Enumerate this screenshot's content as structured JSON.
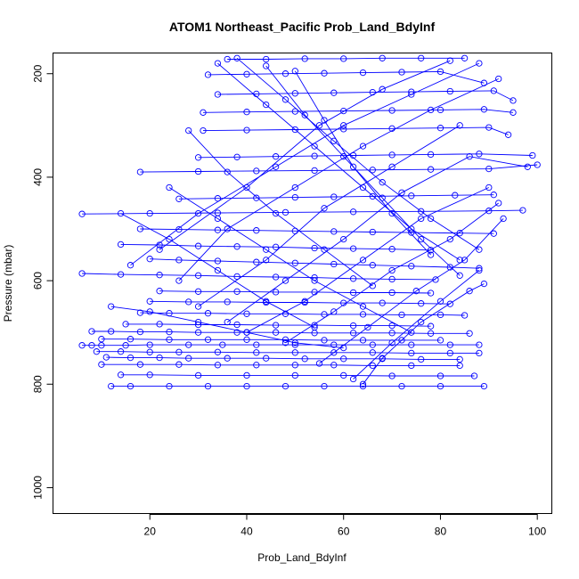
{
  "chart_data": {
    "type": "line",
    "title": "ATOM1 Northeast_Pacific Prob_Land_BdyInf",
    "xlabel": "Prob_Land_BdyInf",
    "ylabel": "Pressure (mbar)",
    "xlim": [
      0,
      103
    ],
    "ylim": [
      1050,
      160
    ],
    "y_reversed": true,
    "x_ticks": [
      20,
      40,
      60,
      80,
      100
    ],
    "y_ticks": [
      200,
      400,
      600,
      800,
      1000
    ],
    "grid": false,
    "legend": "none",
    "marker": "open-circle",
    "color": "#0000ff",
    "series": [
      {
        "x": [
          6,
          8,
          10,
          15,
          20,
          28,
          35,
          42,
          50,
          58,
          66,
          74,
          82,
          88
        ],
        "y": [
          725,
          725,
          725,
          725,
          724,
          724,
          724,
          724,
          724,
          724,
          724,
          724,
          724,
          724
        ]
      },
      {
        "x": [
          8,
          12,
          18,
          24,
          30,
          38,
          46,
          54,
          62,
          70,
          78,
          86
        ],
        "y": [
          698,
          698,
          699,
          699,
          700,
          700,
          700,
          701,
          701,
          701,
          702,
          702
        ]
      },
      {
        "x": [
          11,
          16,
          22,
          28,
          36,
          44,
          52,
          60,
          68,
          76,
          84
        ],
        "y": [
          748,
          749,
          749,
          750,
          750,
          750,
          751,
          751,
          751,
          752,
          752
        ]
      },
      {
        "x": [
          12,
          16,
          24,
          32,
          40,
          48,
          56,
          64,
          72,
          80,
          89
        ],
        "y": [
          804,
          804,
          804,
          804,
          804,
          804,
          804,
          804,
          804,
          804,
          804
        ]
      },
      {
        "x": [
          14,
          20,
          30,
          40,
          50,
          60,
          70,
          80,
          87
        ],
        "y": [
          782,
          782,
          783,
          783,
          783,
          783,
          784,
          784,
          784
        ]
      },
      {
        "x": [
          9,
          14,
          20,
          26,
          34,
          42,
          50,
          58,
          66,
          74,
          82,
          88
        ],
        "y": [
          737,
          737,
          738,
          738,
          738,
          739,
          739,
          739,
          739,
          740,
          740,
          740
        ]
      },
      {
        "x": [
          10,
          16,
          24,
          32,
          40,
          48,
          56,
          64,
          72,
          80
        ],
        "y": [
          713,
          713,
          714,
          714,
          714,
          714,
          715,
          715,
          715,
          715
        ]
      },
      {
        "x": [
          10,
          18,
          26,
          34,
          42,
          50,
          58,
          66,
          74,
          84
        ],
        "y": [
          762,
          762,
          762,
          763,
          763,
          763,
          763,
          764,
          764,
          764
        ]
      },
      {
        "x": [
          15,
          22,
          30,
          38,
          46,
          54,
          62,
          70,
          78
        ],
        "y": [
          684,
          684,
          685,
          685,
          686,
          686,
          687,
          687,
          688
        ]
      },
      {
        "x": [
          18,
          24,
          32,
          40,
          48,
          56,
          64,
          72,
          80,
          85
        ],
        "y": [
          662,
          663,
          663,
          664,
          664,
          665,
          665,
          666,
          666,
          667
        ]
      },
      {
        "x": [
          20,
          28,
          36,
          44,
          52,
          60,
          68,
          76,
          82
        ],
        "y": [
          640,
          641,
          641,
          642,
          642,
          643,
          643,
          644,
          645
        ]
      },
      {
        "x": [
          22,
          30,
          38,
          46,
          54,
          62,
          70,
          78
        ],
        "y": [
          620,
          621,
          621,
          622,
          622,
          623,
          623,
          624
        ]
      },
      {
        "x": [
          6,
          14,
          22,
          30,
          38,
          46,
          54,
          62,
          70,
          79
        ],
        "y": [
          586,
          588,
          589,
          590,
          592,
          593,
          594,
          596,
          597,
          598
        ]
      },
      {
        "x": [
          20,
          26,
          34,
          42,
          50,
          58,
          66,
          74,
          82,
          88
        ],
        "y": [
          558,
          560,
          562,
          564,
          566,
          568,
          570,
          572,
          574,
          576
        ]
      },
      {
        "x": [
          14,
          22,
          30,
          38,
          46,
          54,
          62,
          70,
          78
        ],
        "y": [
          530,
          531,
          533,
          534,
          535,
          537,
          538,
          539,
          541
        ]
      },
      {
        "x": [
          18,
          26,
          34,
          42,
          50,
          58,
          66,
          74,
          84,
          91
        ],
        "y": [
          500,
          501,
          502,
          503,
          504,
          505,
          506,
          507,
          508,
          509
        ]
      },
      {
        "x": [
          6,
          20,
          34,
          48,
          62,
          76,
          90,
          97
        ],
        "y": [
          471,
          470,
          469,
          468,
          467,
          466,
          465,
          464
        ]
      },
      {
        "x": [
          26,
          34,
          42,
          50,
          58,
          66,
          74,
          83,
          91
        ],
        "y": [
          442,
          441,
          440,
          439,
          438,
          437,
          436,
          435,
          434
        ]
      },
      {
        "x": [
          18,
          30,
          42,
          54,
          66,
          78,
          90,
          100
        ],
        "y": [
          390,
          389,
          388,
          387,
          386,
          385,
          384,
          376
        ]
      },
      {
        "x": [
          30,
          38,
          46,
          54,
          62,
          70,
          78,
          88,
          99
        ],
        "y": [
          362,
          361,
          360,
          359,
          358,
          357,
          356,
          355,
          358
        ]
      },
      {
        "x": [
          31,
          40,
          50,
          60,
          70,
          80,
          90,
          94
        ],
        "y": [
          310,
          309,
          308,
          307,
          306,
          305,
          304,
          318
        ]
      },
      {
        "x": [
          31,
          40,
          50,
          60,
          70,
          80,
          89,
          95
        ],
        "y": [
          275,
          274,
          273,
          272,
          271,
          270,
          269,
          275
        ]
      },
      {
        "x": [
          34,
          42,
          50,
          58,
          66,
          74,
          82,
          91,
          95
        ],
        "y": [
          240,
          239,
          238,
          237,
          236,
          235,
          234,
          233,
          252
        ]
      },
      {
        "x": [
          32,
          40,
          48,
          56,
          64,
          72,
          80,
          89
        ],
        "y": [
          202,
          201,
          200,
          199,
          198,
          197,
          196,
          218
        ]
      },
      {
        "x": [
          36,
          44,
          52,
          60,
          68,
          76,
          85
        ],
        "y": [
          172,
          172,
          171,
          171,
          170,
          170,
          170
        ]
      },
      {
        "x": [
          22,
          40,
          55,
          68,
          82
        ],
        "y": [
          540,
          420,
          300,
          230,
          175
        ]
      },
      {
        "x": [
          16,
          30,
          46,
          60,
          74,
          88
        ],
        "y": [
          570,
          470,
          380,
          300,
          240,
          180
        ]
      },
      {
        "x": [
          26,
          36,
          50,
          64,
          78,
          92
        ],
        "y": [
          600,
          500,
          420,
          340,
          270,
          210
        ]
      },
      {
        "x": [
          30,
          44,
          56,
          70,
          84
        ],
        "y": [
          650,
          560,
          460,
          380,
          300
        ]
      },
      {
        "x": [
          36,
          48,
          60,
          72,
          86,
          98
        ],
        "y": [
          680,
          600,
          520,
          430,
          360,
          380
        ]
      },
      {
        "x": [
          40,
          52,
          64,
          76,
          90
        ],
        "y": [
          700,
          640,
          560,
          480,
          420
        ]
      },
      {
        "x": [
          48,
          58,
          70,
          82,
          92
        ],
        "y": [
          720,
          660,
          580,
          520,
          450
        ]
      },
      {
        "x": [
          55,
          65,
          75,
          85,
          93
        ],
        "y": [
          760,
          690,
          620,
          560,
          480
        ]
      },
      {
        "x": [
          62,
          70,
          80,
          88
        ],
        "y": [
          790,
          720,
          640,
          580
        ]
      },
      {
        "x": [
          64,
          68,
          76,
          86,
          89
        ],
        "y": [
          800,
          750,
          680,
          620,
          606
        ]
      },
      {
        "x": [
          34,
          44,
          54,
          64,
          74,
          84
        ],
        "y": [
          180,
          260,
          340,
          420,
          500,
          560
        ]
      },
      {
        "x": [
          38,
          48,
          58,
          68,
          78,
          88
        ],
        "y": [
          170,
          250,
          330,
          410,
          480,
          540
        ]
      },
      {
        "x": [
          44,
          52,
          60,
          68,
          76,
          84
        ],
        "y": [
          185,
          280,
          360,
          440,
          520,
          590
        ]
      },
      {
        "x": [
          50,
          56,
          62,
          70,
          78
        ],
        "y": [
          195,
          290,
          380,
          470,
          550
        ]
      },
      {
        "x": [
          28,
          36,
          46,
          56,
          66
        ],
        "y": [
          310,
          390,
          470,
          540,
          610
        ]
      },
      {
        "x": [
          24,
          34,
          44,
          54,
          64,
          74
        ],
        "y": [
          420,
          480,
          540,
          600,
          650,
          700
        ]
      },
      {
        "x": [
          14,
          24,
          34,
          44,
          54
        ],
        "y": [
          470,
          520,
          580,
          640,
          690
        ]
      },
      {
        "x": [
          12,
          20,
          30,
          40,
          50,
          60
        ],
        "y": [
          650,
          660,
          680,
          700,
          720,
          730
        ]
      }
    ]
  }
}
